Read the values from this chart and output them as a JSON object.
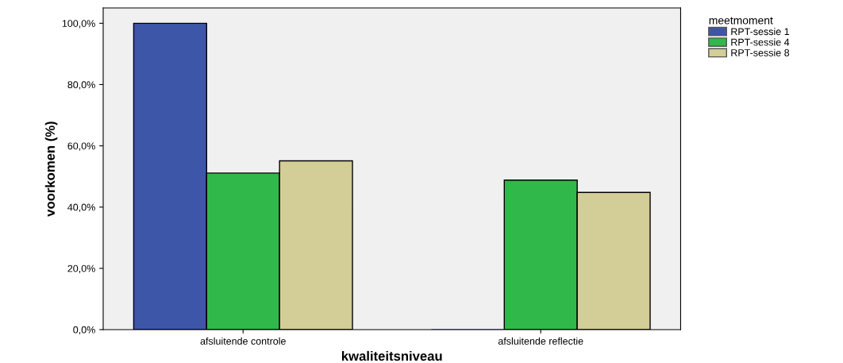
{
  "chart_data": {
    "type": "bar",
    "xlabel": "kwaliteitsniveau",
    "ylabel": "voorkomen (%)",
    "legend_title": "meetmoment",
    "categories": [
      "afsluitende controle",
      "afsluitende reflectie"
    ],
    "series": [
      {
        "name": "RPT-sessie 1",
        "color": "#3d56a8",
        "values": [
          100,
          0
        ]
      },
      {
        "name": "RPT-sessie 4",
        "color": "#30b84a",
        "values": [
          51.1,
          48.8
        ]
      },
      {
        "name": "RPT-sessie 8",
        "color": "#d3cd97",
        "values": [
          55.1,
          44.8
        ]
      }
    ],
    "ylim": [
      0,
      105
    ],
    "yticks": [
      {
        "value": 0,
        "label": "0,0%"
      },
      {
        "value": 20,
        "label": "20,0%"
      },
      {
        "value": 40,
        "label": "40,0%"
      },
      {
        "value": 60,
        "label": "60,0%"
      },
      {
        "value": 80,
        "label": "80,0%"
      },
      {
        "value": 100,
        "label": "100,0%"
      }
    ],
    "grid": false,
    "legend": "top right"
  }
}
